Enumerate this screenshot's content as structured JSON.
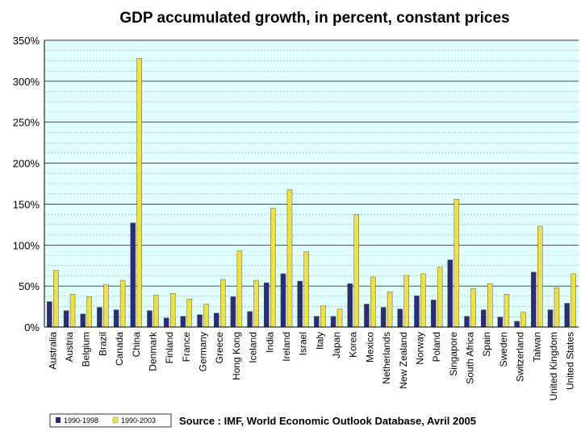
{
  "chart_data": {
    "type": "bar",
    "title": "GDP accumulated growth, in percent, constant prices",
    "xlabel": "",
    "ylabel": "",
    "ylim": [
      0,
      350
    ],
    "y_ticks": [
      "0%",
      "50%",
      "100%",
      "150%",
      "200%",
      "250%",
      "300%",
      "350%"
    ],
    "grid": "horizontal major and minor",
    "legend_position": "bottom-left",
    "categories": [
      "Australia",
      "Austria",
      "Belgium",
      "Brazil",
      "Canada",
      "China",
      "Denmark",
      "Finland",
      "France",
      "Germany",
      "Greece",
      "Hong Kong",
      "Iceland",
      "India",
      "Ireland",
      "Israel",
      "Italy",
      "Japan",
      "Korea",
      "Mexico",
      "Netherlands",
      "New Zealand",
      "Norway",
      "Poland",
      "Singapore",
      "South Africa",
      "Spain",
      "Sweden",
      "Switzerland",
      "Taiwan",
      "United Kingdom",
      "United States"
    ],
    "series": [
      {
        "name": "1990-1998",
        "color": "#2b2b78",
        "values": [
          31,
          20,
          16,
          24,
          21,
          127,
          20,
          11,
          13,
          15,
          17,
          37,
          19,
          54,
          65,
          56,
          13,
          13,
          53,
          28,
          24,
          22,
          38,
          33,
          82,
          13,
          21,
          12,
          7,
          67,
          21,
          29
        ]
      },
      {
        "name": "1990-2003",
        "color": "#f2e040",
        "values": [
          69,
          40,
          37,
          52,
          57,
          328,
          39,
          41,
          34,
          28,
          58,
          93,
          57,
          145,
          168,
          92,
          26,
          22,
          137,
          61,
          43,
          63,
          65,
          73,
          156,
          47,
          53,
          40,
          18,
          123,
          48,
          65
        ]
      }
    ],
    "source": "Source : IMF, World Economic Outlook Database, Avril 2005"
  }
}
